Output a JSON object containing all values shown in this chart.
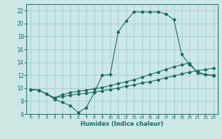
{
  "xlabel": "Humidex (Indice chaleur)",
  "bg_color": "#cce8e5",
  "grid_color": "#aad0cc",
  "line_color": "#1a6b60",
  "xlim": [
    -0.5,
    23.5
  ],
  "ylim": [
    6,
    23
  ],
  "xticks": [
    0,
    1,
    2,
    3,
    4,
    5,
    6,
    7,
    8,
    9,
    10,
    11,
    12,
    13,
    14,
    15,
    16,
    17,
    18,
    19,
    20,
    21,
    22,
    23
  ],
  "yticks": [
    6,
    8,
    10,
    12,
    14,
    16,
    18,
    20,
    22
  ],
  "line1_x": [
    0,
    1,
    2,
    3,
    4,
    5,
    6,
    7,
    8,
    9,
    10,
    11,
    12,
    13,
    14,
    15,
    16,
    17,
    18,
    19,
    20,
    21,
    22,
    23
  ],
  "line1_y": [
    9.8,
    9.7,
    9.1,
    8.3,
    7.8,
    7.3,
    6.2,
    7.0,
    9.3,
    12.0,
    12.1,
    18.7,
    20.4,
    21.8,
    21.8,
    21.8,
    21.8,
    21.5,
    20.6,
    15.2,
    13.6,
    12.5,
    12.1,
    12.0
  ],
  "line2_x": [
    0,
    1,
    2,
    3,
    4,
    5,
    6,
    7,
    8,
    9,
    10,
    11,
    12,
    13,
    14,
    15,
    16,
    17,
    18,
    19,
    20,
    21,
    22,
    23
  ],
  "line2_y": [
    9.8,
    9.7,
    9.1,
    8.5,
    9.0,
    9.3,
    9.5,
    9.7,
    9.9,
    10.1,
    10.4,
    10.7,
    11.0,
    11.3,
    11.7,
    12.1,
    12.5,
    12.9,
    13.3,
    13.6,
    13.9,
    12.3,
    12.1,
    11.9
  ],
  "line3_x": [
    0,
    1,
    2,
    3,
    4,
    5,
    6,
    7,
    8,
    9,
    10,
    11,
    12,
    13,
    14,
    15,
    16,
    17,
    18,
    19,
    20,
    21,
    22,
    23
  ],
  "line3_y": [
    9.8,
    9.7,
    9.1,
    8.5,
    8.7,
    8.9,
    9.1,
    9.2,
    9.4,
    9.6,
    9.8,
    10.0,
    10.3,
    10.5,
    10.8,
    11.0,
    11.3,
    11.6,
    11.9,
    12.2,
    12.5,
    12.7,
    12.9,
    13.1
  ]
}
